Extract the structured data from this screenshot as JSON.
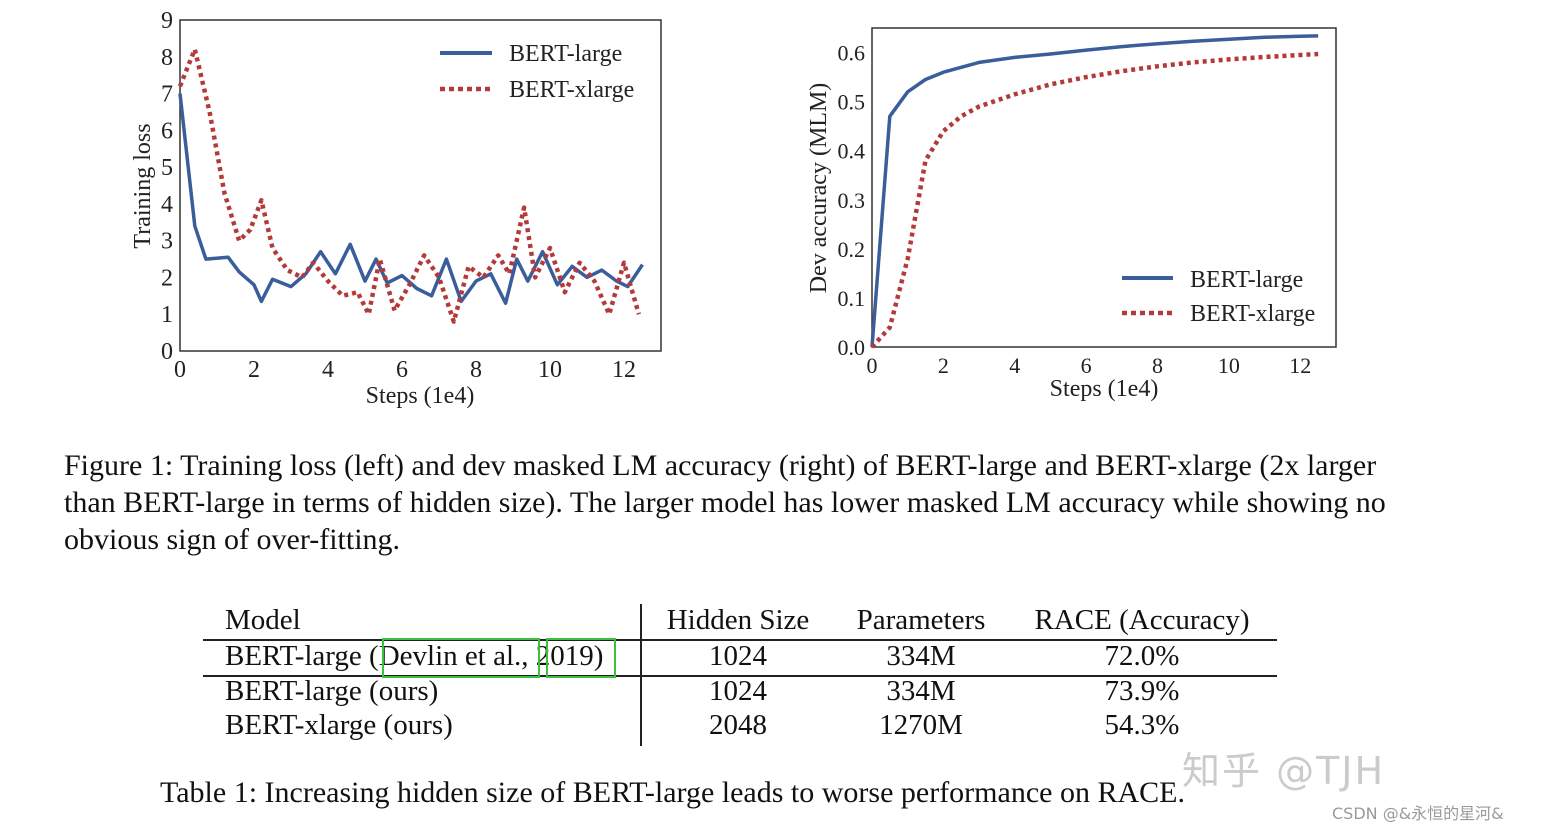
{
  "chart_data": [
    {
      "type": "line",
      "xlabel": "Steps (1e4)",
      "ylabel": "Training loss",
      "xlim": [
        0,
        13
      ],
      "ylim": [
        0,
        9
      ],
      "xticks": [
        "0",
        "2",
        "4",
        "6",
        "8",
        "10",
        "12"
      ],
      "yticks": [
        "0",
        "1",
        "2",
        "3",
        "4",
        "5",
        "6",
        "7",
        "8",
        "9"
      ],
      "legend_position": "top-right",
      "grid": false,
      "series": [
        {
          "name": "BERT-large",
          "color": "#3a5d9c",
          "style": "solid",
          "x": [
            0,
            0.4,
            0.7,
            1.3,
            1.6,
            2.0,
            2.2,
            2.5,
            3.0,
            3.4,
            3.8,
            4.2,
            4.6,
            5.0,
            5.3,
            5.6,
            6.0,
            6.4,
            6.8,
            7.2,
            7.6,
            8.0,
            8.4,
            8.8,
            9.1,
            9.4,
            9.8,
            10.2,
            10.6,
            11.0,
            11.4,
            11.8,
            12.1,
            12.5
          ],
          "y": [
            7.0,
            3.4,
            2.5,
            2.55,
            2.15,
            1.8,
            1.35,
            1.95,
            1.75,
            2.1,
            2.7,
            2.1,
            2.9,
            1.9,
            2.5,
            1.85,
            2.05,
            1.7,
            1.5,
            2.5,
            1.35,
            1.9,
            2.1,
            1.3,
            2.5,
            1.9,
            2.7,
            1.8,
            2.3,
            2.0,
            2.2,
            1.9,
            1.75,
            2.35
          ]
        },
        {
          "name": "BERT-xlarge",
          "color": "#b33a3a",
          "style": "dotted",
          "x": [
            0,
            0.4,
            0.8,
            1.2,
            1.6,
            1.9,
            2.2,
            2.5,
            2.9,
            3.3,
            3.6,
            4.0,
            4.4,
            4.8,
            5.1,
            5.4,
            5.8,
            6.2,
            6.6,
            7.0,
            7.4,
            7.8,
            8.2,
            8.6,
            8.9,
            9.3,
            9.6,
            10.0,
            10.4,
            10.8,
            11.2,
            11.6,
            12.0,
            12.4
          ],
          "y": [
            7.2,
            8.2,
            6.5,
            4.3,
            3.0,
            3.3,
            4.1,
            2.8,
            2.2,
            2.0,
            2.4,
            1.9,
            1.5,
            1.6,
            1.0,
            2.5,
            1.1,
            1.8,
            2.6,
            2.0,
            0.8,
            2.3,
            2.0,
            2.6,
            2.1,
            3.9,
            2.0,
            2.8,
            1.6,
            2.4,
            1.9,
            1.0,
            2.4,
            1.0
          ]
        }
      ]
    },
    {
      "type": "line",
      "xlabel": "Steps (1e4)",
      "ylabel": "Dev accuracy (MLM)",
      "xlim": [
        0,
        13
      ],
      "ylim": [
        0,
        0.65
      ],
      "xticks": [
        "0",
        "2",
        "4",
        "6",
        "8",
        "10",
        "12"
      ],
      "yticks": [
        "0.0",
        "0.1",
        "0.2",
        "0.3",
        "0.4",
        "0.5",
        "0.6"
      ],
      "legend_position": "lower-right",
      "grid": false,
      "series": [
        {
          "name": "BERT-large",
          "color": "#3a5d9c",
          "style": "solid",
          "x": [
            0,
            0.5,
            1.0,
            1.5,
            2.0,
            3.0,
            4.0,
            5.0,
            6.0,
            7.0,
            8.0,
            9.0,
            10.0,
            11.0,
            12.0,
            12.5
          ],
          "y": [
            0.0,
            0.47,
            0.52,
            0.545,
            0.56,
            0.58,
            0.59,
            0.597,
            0.605,
            0.612,
            0.618,
            0.623,
            0.627,
            0.631,
            0.633,
            0.634
          ]
        },
        {
          "name": "BERT-xlarge",
          "color": "#b33a3a",
          "style": "dotted",
          "x": [
            0,
            0.5,
            1.0,
            1.5,
            2.0,
            2.5,
            3.0,
            4.0,
            5.0,
            6.0,
            7.0,
            8.0,
            9.0,
            10.0,
            11.0,
            12.0,
            12.5
          ],
          "y": [
            0.0,
            0.04,
            0.18,
            0.38,
            0.44,
            0.47,
            0.49,
            0.515,
            0.535,
            0.55,
            0.562,
            0.572,
            0.58,
            0.586,
            0.591,
            0.595,
            0.597
          ]
        }
      ]
    }
  ],
  "figure_caption": "Figure 1: Training loss (left) and dev masked LM accuracy (right) of BERT-large and BERT-xlarge (2x larger than BERT-large in terms of hidden size). The larger model has lower masked LM accuracy while showing no obvious sign of over-fitting.",
  "table": {
    "headers": [
      "Model",
      "Hidden Size",
      "Parameters",
      "RACE (Accuracy)"
    ],
    "rows": [
      {
        "model_prefix": "BERT-large (",
        "citation_author": "Devlin et al.",
        "citation_sep": ", ",
        "citation_year": "2019",
        "model_suffix": ")",
        "hidden": "1024",
        "params": "334M",
        "race": "72.0%"
      },
      {
        "model": "BERT-large (ours)",
        "hidden": "1024",
        "params": "334M",
        "race": "73.9%"
      },
      {
        "model": "BERT-xlarge (ours)",
        "hidden": "2048",
        "params": "1270M",
        "race": "54.3%"
      }
    ],
    "citation_box_color": "#3fbf3f"
  },
  "table_caption": "Table 1: Increasing hidden size of BERT-large leads to worse performance on RACE.",
  "watermark": "知乎 @TJH",
  "source_credit": "CSDN @&永恒的星河&"
}
